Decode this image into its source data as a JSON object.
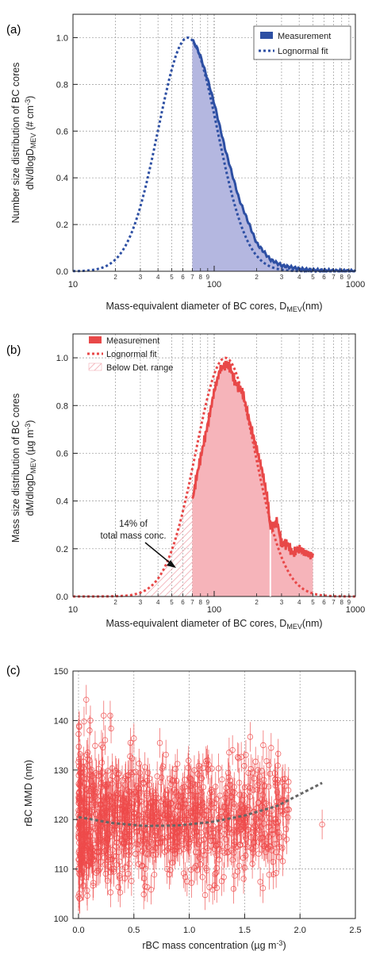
{
  "chart_data": [
    {
      "panel": "(a)",
      "type": "area",
      "xscale": "log",
      "xlim": [
        10,
        1000
      ],
      "ylim": [
        0,
        1.1
      ],
      "yticks": [
        0.0,
        0.2,
        0.4,
        0.6,
        0.8,
        1.0
      ],
      "xticks_major": [
        "10",
        "100",
        "1000"
      ],
      "xticks_minor": [
        "2",
        "3",
        "4",
        "5",
        "6",
        "7",
        "8",
        "9"
      ],
      "xlabel": "Mass-equivalent diameter of BC cores, D",
      "xlabel_sub": "MEV",
      "xlabel_unit": "(nm)",
      "ylabel_line1": "Number size distribution of BC cores",
      "ylabel_line2_a": "dN/dlogD",
      "ylabel_line2_sub": "MEV",
      "ylabel_line2_b": " (# cm",
      "ylabel_line2_sup": "-3",
      "ylabel_line2_c": ")",
      "legend": [
        "Measurement",
        "Lognormal fit"
      ],
      "legend_position": "top-right",
      "grid": true,
      "measurement_range": [
        70,
        1000
      ],
      "lognormal_fit": {
        "mode": 65,
        "sigma_g": 1.62,
        "peak": 1.0
      },
      "series": [
        {
          "name": "Measurement",
          "x": [
            70,
            75,
            80,
            90,
            100,
            120,
            150,
            200,
            250,
            300,
            400,
            500,
            700,
            1000
          ],
          "y": [
            0.99,
            0.96,
            0.92,
            0.82,
            0.72,
            0.52,
            0.31,
            0.12,
            0.05,
            0.025,
            0.01,
            0.005,
            0.002,
            0.0
          ]
        },
        {
          "name": "Lognormal fit",
          "x": [
            10,
            15,
            20,
            25,
            30,
            40,
            50,
            60,
            65,
            70,
            80,
            100,
            150,
            200,
            300,
            500,
            1000
          ],
          "y": [
            0.0,
            0.005,
            0.04,
            0.1,
            0.19,
            0.43,
            0.71,
            0.93,
            1.0,
            0.98,
            0.92,
            0.75,
            0.36,
            0.15,
            0.03,
            0.002,
            0.0
          ]
        }
      ]
    },
    {
      "panel": "(b)",
      "type": "area",
      "xscale": "log",
      "xlim": [
        10,
        1000
      ],
      "ylim": [
        0,
        1.1
      ],
      "yticks": [
        0.0,
        0.2,
        0.4,
        0.6,
        0.8,
        1.0
      ],
      "xticks_major": [
        "10",
        "100",
        "1000"
      ],
      "xticks_minor": [
        "2",
        "3",
        "4",
        "5",
        "6",
        "7",
        "8",
        "9"
      ],
      "xlabel": "Mass-equivalent diameter of BC cores, D",
      "xlabel_sub": "MEV",
      "xlabel_unit": "(nm)",
      "ylabel_line1": "Mass size distribution of BC cores",
      "ylabel_line2_a": "dM/dlogD",
      "ylabel_line2_sub": "MEV",
      "ylabel_line2_b": " (µg m",
      "ylabel_line2_sup": "-3",
      "ylabel_line2_c": ")",
      "legend": [
        "Measurement",
        "Lognormal fit",
        "Below Det. range"
      ],
      "legend_position": "top-left",
      "grid": true,
      "annotation_line1": "14% of",
      "annotation_line2": "total mass conc.",
      "detection_range": [
        70,
        500
      ],
      "lognormal_fit": {
        "mode": 120,
        "sigma_g": 1.62,
        "peak": 1.0
      },
      "series": [
        {
          "name": "Measurement",
          "x": [
            70,
            75,
            80,
            90,
            100,
            110,
            120,
            130,
            140,
            160,
            180,
            200,
            220,
            240,
            250,
            260,
            280,
            300,
            330,
            360,
            400,
            450,
            500
          ],
          "y": [
            0.4,
            0.5,
            0.58,
            0.72,
            0.86,
            0.95,
            0.97,
            0.96,
            0.9,
            0.85,
            0.72,
            0.62,
            0.52,
            0.4,
            0.28,
            0.3,
            0.31,
            0.22,
            0.22,
            0.18,
            0.2,
            0.18,
            0.17
          ]
        },
        {
          "name": "Lognormal fit",
          "x": [
            10,
            20,
            30,
            40,
            50,
            60,
            70,
            80,
            100,
            120,
            150,
            200,
            250,
            300,
            400,
            500,
            700,
            1000
          ],
          "y": [
            0.0,
            0.0,
            0.02,
            0.08,
            0.17,
            0.3,
            0.44,
            0.58,
            0.85,
            1.0,
            0.96,
            0.7,
            0.43,
            0.25,
            0.08,
            0.02,
            0.0,
            0.0
          ]
        }
      ]
    },
    {
      "panel": "(c)",
      "type": "scatter",
      "xlim": [
        -0.05,
        2.5
      ],
      "ylim": [
        100,
        150
      ],
      "xticks": [
        0.0,
        0.5,
        1.0,
        1.5,
        2.0,
        2.5
      ],
      "yticks": [
        100,
        110,
        120,
        130,
        140,
        150
      ],
      "xlabel": "rBC mass concentration (µg m",
      "xlabel_sup": "-3",
      "xlabel_end": ")",
      "ylabel": "rBC MMD (nm)",
      "grid": true,
      "marker": "open-circle-with-error-bars",
      "error_bar_halfwidth": 3,
      "color": "#ee4a4a",
      "trend_color": "#666666",
      "trend": {
        "x": [
          0.0,
          0.3,
          0.6,
          0.9,
          1.2,
          1.5,
          1.8,
          2.2
        ],
        "y": [
          120.5,
          119.3,
          118.7,
          118.8,
          119.5,
          120.8,
          122.8,
          127.4
        ]
      },
      "highlighted_points": {
        "x": [
          0.05,
          0.07,
          0.1,
          0.15,
          0.5,
          0.75,
          0.98,
          1.02,
          1.4,
          1.55,
          1.57,
          1.62,
          1.72,
          1.8,
          1.85,
          1.88,
          2.2,
          0.3,
          0.8,
          1.1
        ],
        "y": [
          139.8,
          144.2,
          138.0,
          134.9,
          136.4,
          128.5,
          107.5,
          107.2,
          106.0,
          136.7,
          129.5,
          130.0,
          131.0,
          128.0,
          116.5,
          116.0,
          119.0,
          110.0,
          110.0,
          112.0
        ]
      },
      "cloud": {
        "x_range": [
          0.0,
          1.9
        ],
        "y_center": 120,
        "y_spread": 6.5,
        "count": 1200
      }
    }
  ],
  "colors": {
    "blue_line": "#2d4fa3",
    "blue_fill": "#b4b7e0",
    "red_line": "#e84848",
    "red_fill": "#f6b4ba",
    "hatch": "#f0a0a8",
    "grid": "#999999"
  }
}
